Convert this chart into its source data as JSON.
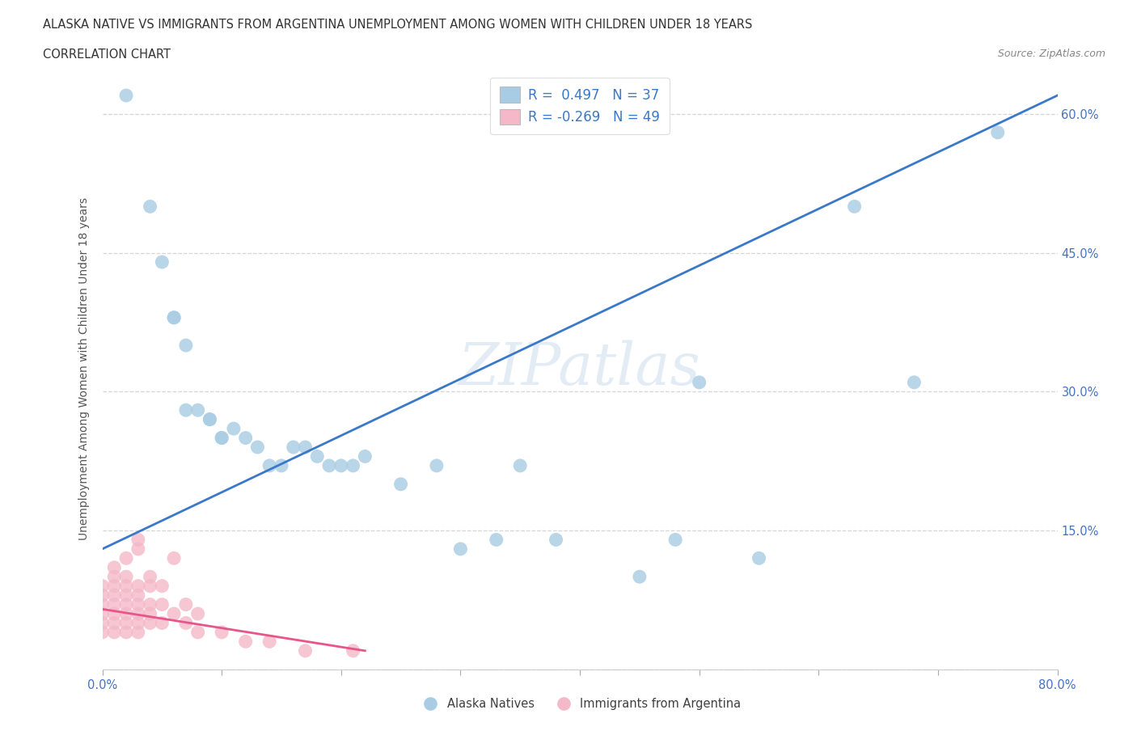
{
  "title_line1": "ALASKA NATIVE VS IMMIGRANTS FROM ARGENTINA UNEMPLOYMENT AMONG WOMEN WITH CHILDREN UNDER 18 YEARS",
  "title_line2": "CORRELATION CHART",
  "source": "Source: ZipAtlas.com",
  "ylabel": "Unemployment Among Women with Children Under 18 years",
  "xlim": [
    0.0,
    0.8
  ],
  "ylim": [
    0.0,
    0.65
  ],
  "xticks": [
    0.0,
    0.1,
    0.2,
    0.3,
    0.4,
    0.5,
    0.6,
    0.7,
    0.8
  ],
  "yticks": [
    0.0,
    0.15,
    0.3,
    0.45,
    0.6
  ],
  "watermark": "ZIPatlas",
  "legend_r1": "R =  0.497   N = 37",
  "legend_r2": "R = -0.269   N = 49",
  "alaska_color": "#a8cce4",
  "argentina_color": "#f4b8c8",
  "alaska_line_color": "#3a78c9",
  "argentina_line_color": "#e8558a",
  "alaska_scatter": [
    [
      0.02,
      0.62
    ],
    [
      0.04,
      0.5
    ],
    [
      0.05,
      0.44
    ],
    [
      0.06,
      0.38
    ],
    [
      0.06,
      0.38
    ],
    [
      0.07,
      0.35
    ],
    [
      0.07,
      0.28
    ],
    [
      0.08,
      0.28
    ],
    [
      0.09,
      0.27
    ],
    [
      0.09,
      0.27
    ],
    [
      0.1,
      0.25
    ],
    [
      0.1,
      0.25
    ],
    [
      0.11,
      0.26
    ],
    [
      0.12,
      0.25
    ],
    [
      0.13,
      0.24
    ],
    [
      0.14,
      0.22
    ],
    [
      0.15,
      0.22
    ],
    [
      0.16,
      0.24
    ],
    [
      0.17,
      0.24
    ],
    [
      0.18,
      0.23
    ],
    [
      0.19,
      0.22
    ],
    [
      0.2,
      0.22
    ],
    [
      0.21,
      0.22
    ],
    [
      0.22,
      0.23
    ],
    [
      0.25,
      0.2
    ],
    [
      0.28,
      0.22
    ],
    [
      0.3,
      0.13
    ],
    [
      0.33,
      0.14
    ],
    [
      0.35,
      0.22
    ],
    [
      0.38,
      0.14
    ],
    [
      0.45,
      0.1
    ],
    [
      0.48,
      0.14
    ],
    [
      0.5,
      0.31
    ],
    [
      0.55,
      0.12
    ],
    [
      0.63,
      0.5
    ],
    [
      0.68,
      0.31
    ],
    [
      0.75,
      0.58
    ]
  ],
  "argentina_scatter": [
    [
      0.0,
      0.04
    ],
    [
      0.0,
      0.05
    ],
    [
      0.0,
      0.06
    ],
    [
      0.0,
      0.07
    ],
    [
      0.0,
      0.08
    ],
    [
      0.0,
      0.09
    ],
    [
      0.01,
      0.04
    ],
    [
      0.01,
      0.05
    ],
    [
      0.01,
      0.06
    ],
    [
      0.01,
      0.07
    ],
    [
      0.01,
      0.08
    ],
    [
      0.01,
      0.09
    ],
    [
      0.01,
      0.1
    ],
    [
      0.01,
      0.11
    ],
    [
      0.02,
      0.04
    ],
    [
      0.02,
      0.05
    ],
    [
      0.02,
      0.06
    ],
    [
      0.02,
      0.07
    ],
    [
      0.02,
      0.08
    ],
    [
      0.02,
      0.09
    ],
    [
      0.02,
      0.1
    ],
    [
      0.02,
      0.12
    ],
    [
      0.03,
      0.04
    ],
    [
      0.03,
      0.05
    ],
    [
      0.03,
      0.06
    ],
    [
      0.03,
      0.07
    ],
    [
      0.03,
      0.08
    ],
    [
      0.03,
      0.09
    ],
    [
      0.03,
      0.13
    ],
    [
      0.03,
      0.14
    ],
    [
      0.04,
      0.05
    ],
    [
      0.04,
      0.06
    ],
    [
      0.04,
      0.07
    ],
    [
      0.04,
      0.09
    ],
    [
      0.04,
      0.1
    ],
    [
      0.05,
      0.05
    ],
    [
      0.05,
      0.07
    ],
    [
      0.05,
      0.09
    ],
    [
      0.06,
      0.06
    ],
    [
      0.06,
      0.12
    ],
    [
      0.07,
      0.05
    ],
    [
      0.07,
      0.07
    ],
    [
      0.08,
      0.04
    ],
    [
      0.08,
      0.06
    ],
    [
      0.1,
      0.04
    ],
    [
      0.12,
      0.03
    ],
    [
      0.14,
      0.03
    ],
    [
      0.17,
      0.02
    ],
    [
      0.21,
      0.02
    ]
  ],
  "background_color": "#ffffff",
  "grid_color": "#cccccc",
  "title_color": "#333333",
  "axis_label_color": "#555555",
  "tick_color": "#4472c4"
}
